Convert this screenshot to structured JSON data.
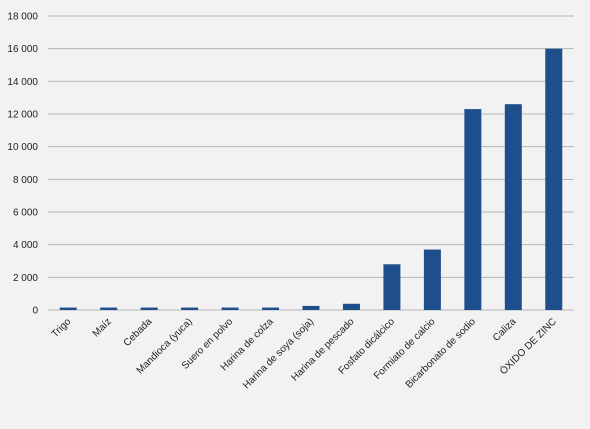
{
  "chart_data": {
    "type": "bar",
    "title": "",
    "xlabel": "",
    "ylabel": "",
    "ylim": [
      0,
      18000
    ],
    "yticks": [
      0,
      2000,
      4000,
      6000,
      8000,
      10000,
      12000,
      14000,
      16000,
      18000
    ],
    "ytick_labels": [
      "0",
      "2 000",
      "4 000",
      "6 000",
      "8 000",
      "10 000",
      "12 000",
      "14 000",
      "16 000",
      "18 000"
    ],
    "grid": true,
    "legend": "none",
    "bar_color": "#1f4e8c",
    "grid_color": "#b7b7b7",
    "categories": [
      "Trigo",
      "Maíz",
      "Cebada",
      "Mandioca (yuca)",
      "Suero en polvo",
      "Harina de colza",
      "Harina de soya (soja)",
      "Harina de pescado",
      "Fosfato dicálcico",
      "Formiato de calcio",
      "Bicarbonato de sodio",
      "Caliza",
      "ÓXIDO DE ZINC"
    ],
    "values": [
      150,
      150,
      150,
      150,
      150,
      150,
      250,
      380,
      2800,
      3700,
      12300,
      12600,
      16000
    ]
  }
}
